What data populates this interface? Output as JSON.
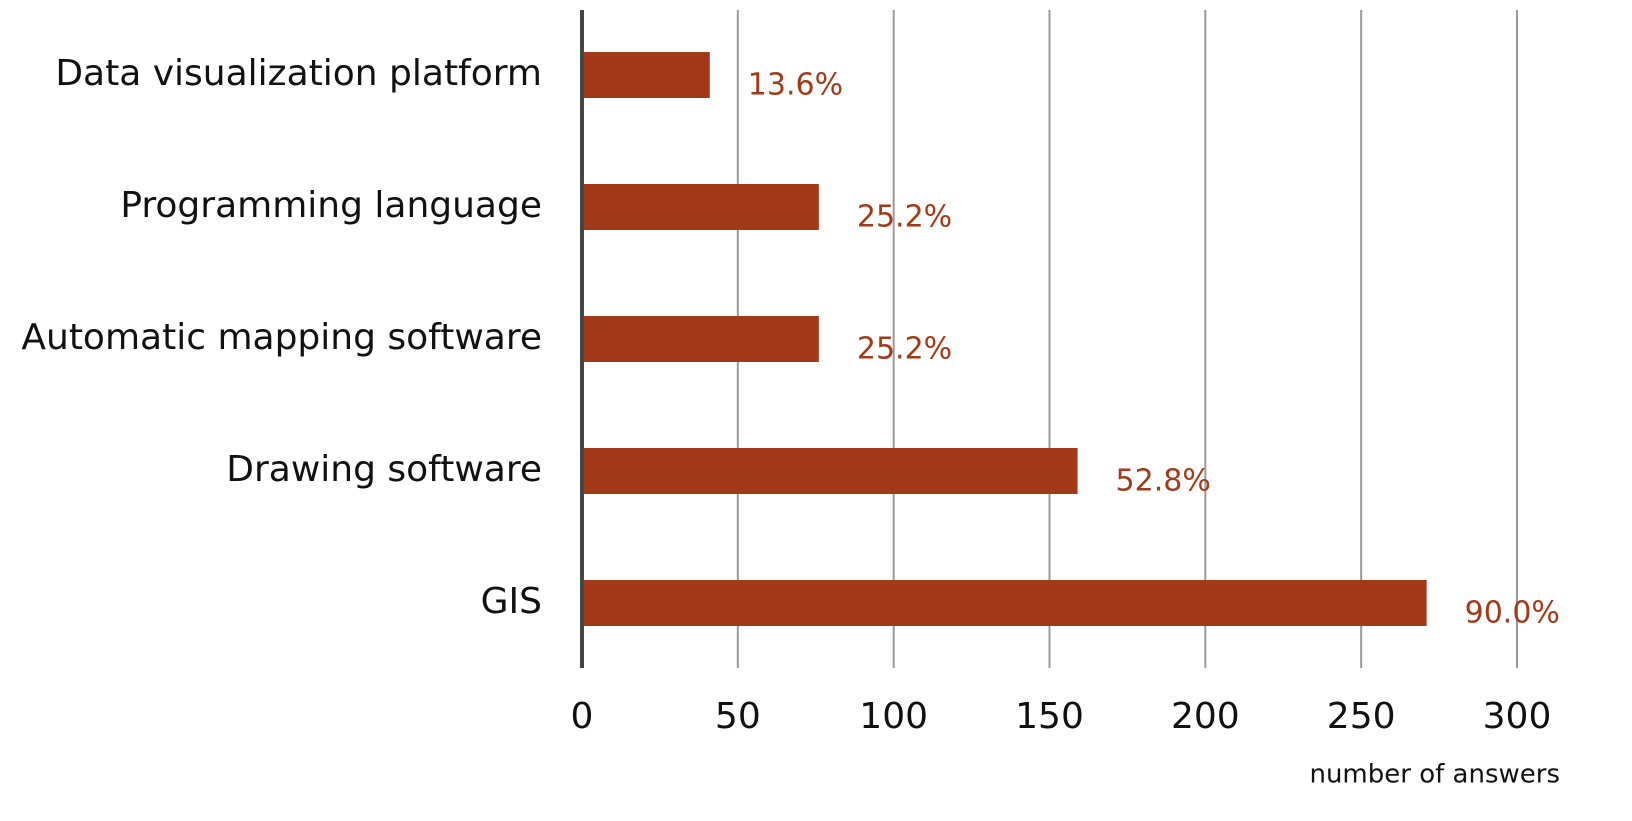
{
  "chart_data": {
    "type": "barh",
    "categories": [
      "Data visualization platform",
      "Programming language",
      "Automatic mapping software",
      "Drawing software",
      "GIS"
    ],
    "values": [
      41,
      76,
      76,
      159,
      271
    ],
    "value_labels": [
      "13.6%",
      "25.2%",
      "25.2%",
      "52.8%",
      "90.0%"
    ],
    "color": "#a23a19",
    "xlabel": "number of answers",
    "xlim": [
      0,
      300
    ],
    "xticks": [
      0,
      50,
      100,
      150,
      200,
      250,
      300
    ],
    "grid": true
  }
}
